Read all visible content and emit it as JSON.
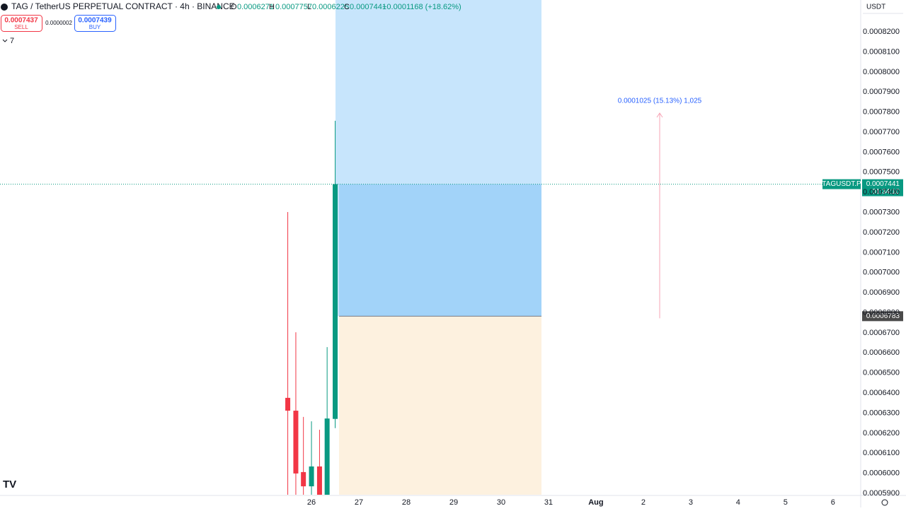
{
  "header": {
    "symbol": "TAG / TetherUS PERPETUAL CONTRACT · 4h · BINANCE",
    "o_label": "O",
    "h_label": "H",
    "l_label": "L",
    "c_label": "C",
    "change": "+0.0001168 (+18.62%)"
  },
  "trade": {
    "sell_price": "0.0007437",
    "sell": "SELL",
    "spread": "0.0000002",
    "buy_price": "0.0007439",
    "buy": "BUY"
  },
  "indicators_toggle": "7",
  "currency": "USDT",
  "chart_data": {
    "type": "candlestick",
    "x": [
      25.5,
      25.67,
      25.83,
      26.0,
      26.17,
      26.33,
      26.5
    ],
    "open": [
      0.0006376,
      0.0006312,
      0.0006006,
      0.0005935,
      0.0006034,
      0.0005893,
      0.0006271
    ],
    "high": [
      0.0007302,
      0.0006703,
      0.0006281,
      0.0006259,
      0.0006217,
      0.0006629,
      0.0007757
    ],
    "low": [
      0.0005893,
      0.0005893,
      0.0005893,
      0.0005893,
      0.0005893,
      0.0005893,
      0.0006225
    ],
    "close": [
      0.0006312,
      0.0005999,
      0.0005935,
      0.0006034,
      0.0005893,
      0.0006273,
      0.0007441
    ],
    "up_color": "#089981",
    "down_color": "#f23645",
    "xlim": [
      19.43,
      37.57
    ],
    "xticks": [
      26,
      27,
      28,
      29,
      30,
      31,
      {
        "value": 32,
        "label": "Aug"
      },
      {
        "value": 33,
        "label": "2"
      },
      {
        "value": 34,
        "label": "3"
      },
      {
        "value": 35,
        "label": "4"
      },
      {
        "value": 36,
        "label": "5"
      },
      {
        "value": 37,
        "label": "6"
      }
    ],
    "ylim": [
      0.0005893,
      0.0008359
    ],
    "yticks": [
      {
        "value": 0.00059,
        "label": "0.0005900"
      },
      {
        "value": 0.0006,
        "label": "0.0006000"
      },
      {
        "value": 0.00061,
        "label": "0.0006100"
      },
      {
        "value": 0.00062,
        "label": "0.0006200"
      },
      {
        "value": 0.00063,
        "label": "0.0006300"
      },
      {
        "value": 0.00064,
        "label": "0.0006400"
      },
      {
        "value": 0.00065,
        "label": "0.0006500"
      },
      {
        "value": 0.00066,
        "label": "0.0006600"
      },
      {
        "value": 0.00067,
        "label": "0.0006700"
      },
      {
        "value": 0.00068,
        "label": "0.0006800"
      },
      {
        "value": 0.00069,
        "label": "0.0006900"
      },
      {
        "value": 0.0007,
        "label": "0.0007000"
      },
      {
        "value": 0.00071,
        "label": "0.0007100"
      },
      {
        "value": 0.00072,
        "label": "0.0007200"
      },
      {
        "value": 0.00073,
        "label": "0.0007300"
      },
      {
        "value": 0.00074,
        "label": "0.0007400"
      },
      {
        "value": 0.00075,
        "label": "0.0007500"
      },
      {
        "value": 0.00076,
        "label": "0.0007600"
      },
      {
        "value": 0.00077,
        "label": "0.0007700"
      },
      {
        "value": 0.00078,
        "label": "0.0007800"
      },
      {
        "value": 0.00079,
        "label": "0.0007900"
      },
      {
        "value": 0.0008,
        "label": "0.0008000"
      },
      {
        "value": 0.00081,
        "label": "0.0008100"
      },
      {
        "value": 0.00082,
        "label": "0.0008200"
      }
    ],
    "grid": false,
    "symbol_tag": "TAGUSDT.P",
    "countdown": "01:34:10",
    "position_entry": 0.0006783,
    "annotation": "0.0001025 (15.13%) 1,025"
  }
}
